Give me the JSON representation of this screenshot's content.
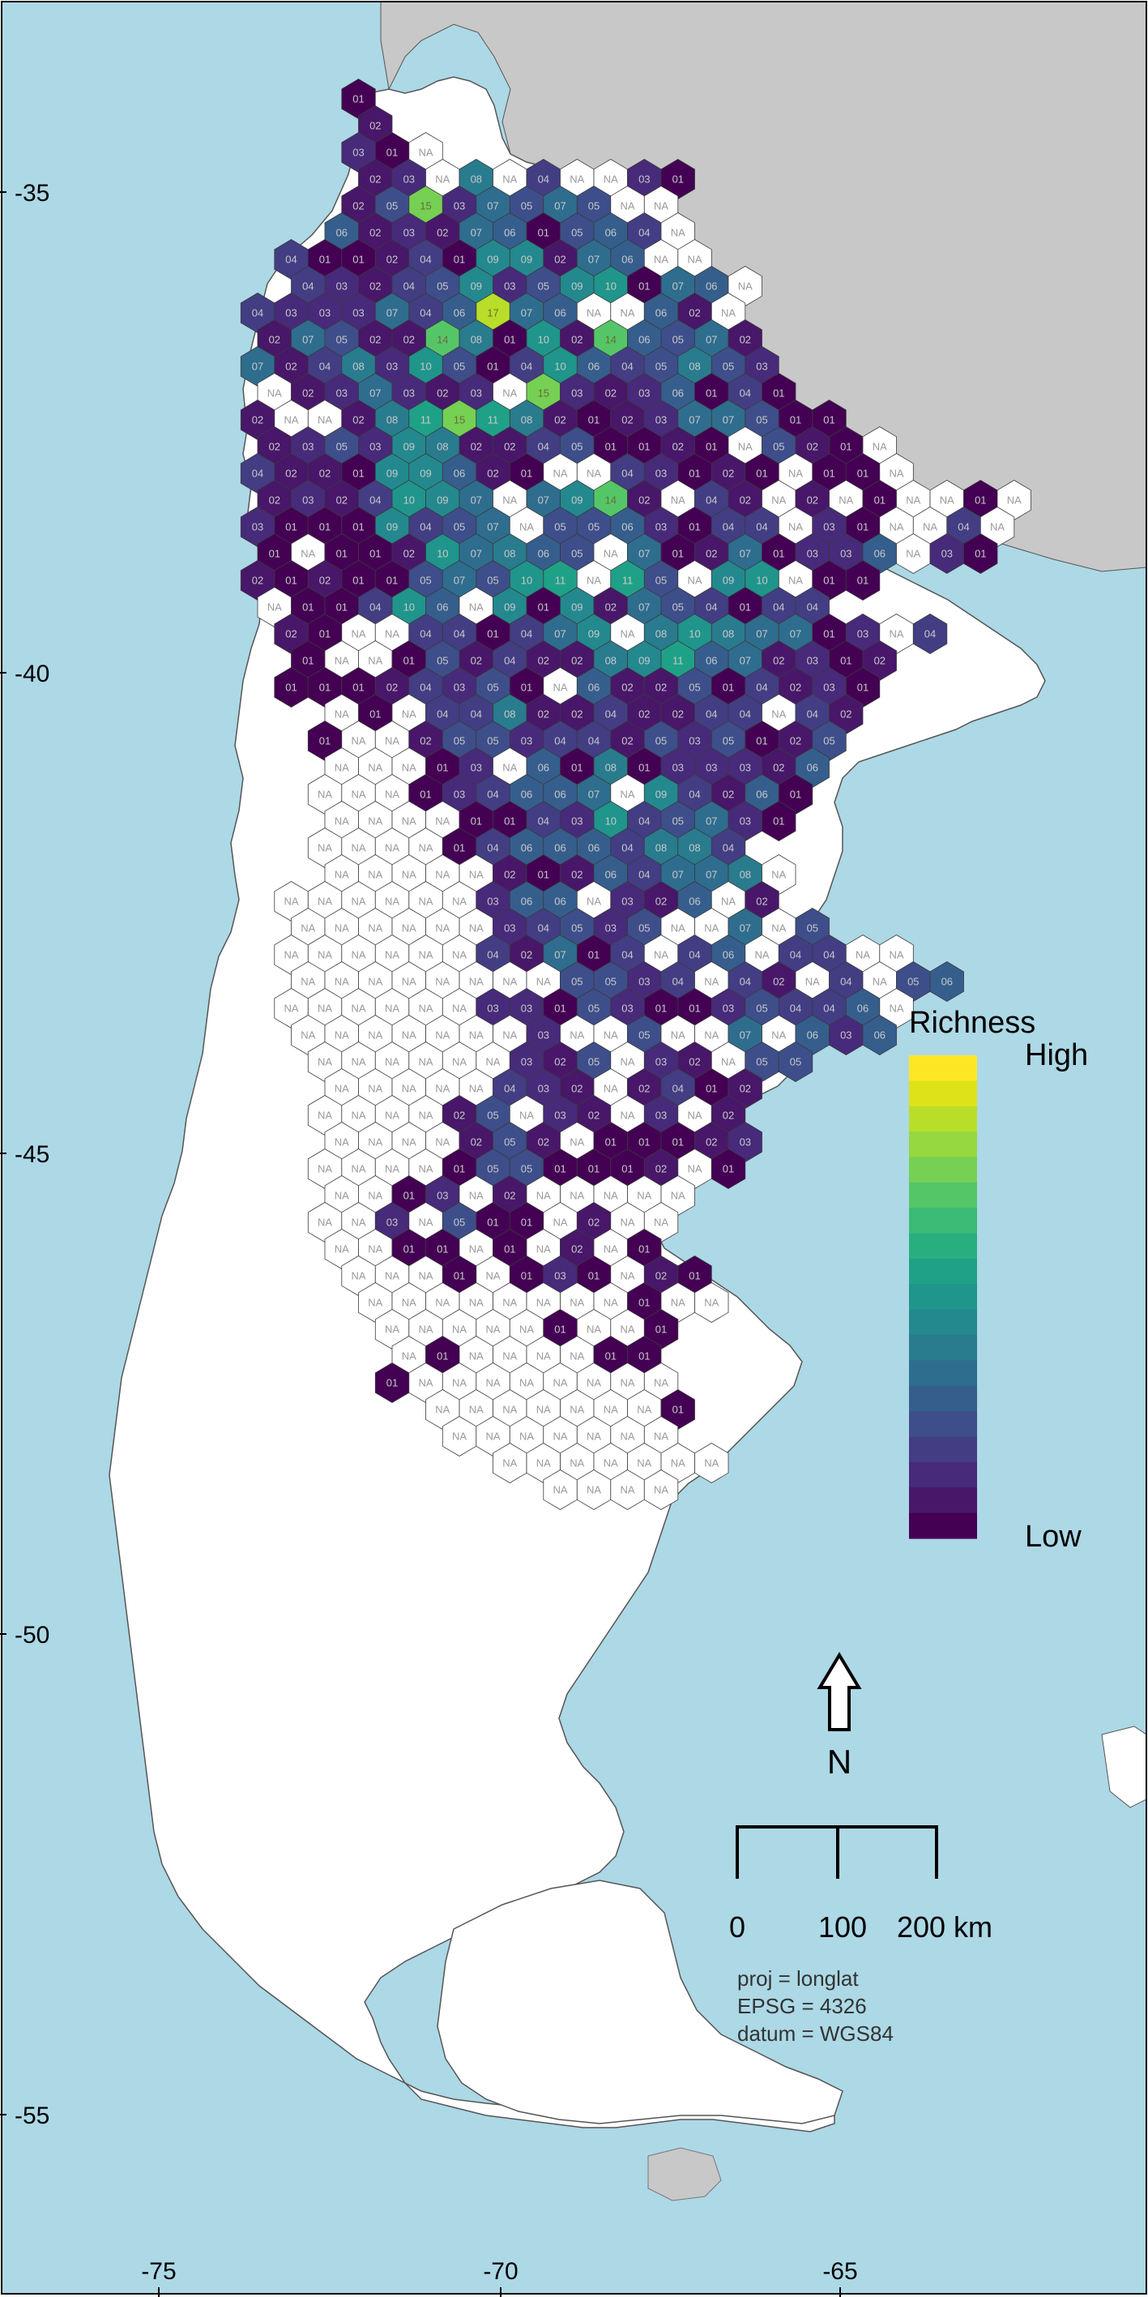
{
  "colors": {
    "ocean": "#add8e6",
    "land": "#ffffff",
    "neighbor": "#c8c8c8",
    "na_hex": "#ffffff",
    "na_text": "#9a9a9a",
    "hex_stroke": "#3a3a3a",
    "richness_ramp": [
      "#440154",
      "#481769",
      "#472a7a",
      "#433d84",
      "#3d4e8a",
      "#355e8d",
      "#2e6d8e",
      "#297b8e",
      "#23898e",
      "#1f958b",
      "#1fa187",
      "#29af7f",
      "#3bbb75",
      "#55c667",
      "#75d054",
      "#95d840",
      "#b8de29",
      "#dde318",
      "#fde725"
    ]
  },
  "axes": {
    "y_ticks": [
      "-35",
      "-40",
      "-45",
      "-50",
      "-55"
    ],
    "x_ticks": [
      "-75",
      "-70",
      "-65"
    ]
  },
  "legend": {
    "title": "Richness",
    "high": "High",
    "low": "Low"
  },
  "north_arrow": {
    "label": "N"
  },
  "scale_bar": {
    "labels": [
      "0",
      "100",
      "200 km"
    ]
  },
  "projection": {
    "line1": "proj = longlat",
    "line2": "EPSG = 4326",
    "line3": "datum = WGS84"
  },
  "hex_grid": {
    "na_label": "NA",
    "rows": [
      "3:01",
      "3:02",
      "3:03,01,NA",
      "3:02,03,NA,08,NA,04,NA,NA,03,01",
      "3:02,05,15,03,07,05,07,05,NA,NA",
      "2:06,02,03,02,07,06,01,05,06,04,NA",
      "1:04,01,01,02,04,01,09,09,02,07,06,NA,NA",
      "1:04,03,02,04,05,09,03,05,09,10,01,07,06,NA",
      "0:04,03,03,03,07,04,06,17,07,06,NA,NA,06,02,NA",
      "0:02,07,05,02,02,14,08,01,10,02,14,06,05,07,02",
      "0:07,02,04,08,03,10,05,01,04,10,06,04,05,08,05,03",
      "0:NA,02,03,07,03,02,03,NA,15,03,02,03,06,01,04,01",
      "0:02,NA,NA,02,08,11,15,11,08,02,01,02,03,07,07,05,01,01",
      "0:02,03,05,03,09,08,02,02,04,05,01,01,02,01,NA,05,02,01,NA",
      "0:04,02,02,01,09,09,06,02,01,NA,NA,04,03,01,02,01,NA,01,01,NA",
      "0:02,03,02,04,10,09,07,NA,07,09,14,02,NA,04,02,NA,02,NA,01,NA,NA,01,NA",
      "0:03,01,01,01,09,04,05,07,NA,05,05,06,03,01,04,04,NA,03,01,NA,NA,04,NA",
      "0:01,NA,01,01,02,10,07,08,06,05,NA,07,01,02,07,01,03,03,06,NA,03,01",
      "0:02,01,02,01,01,05,07,05,10,11,NA,11,05,NA,09,10,NA,01,01",
      "0:NA,01,01,04,10,06,NA,09,01,09,02,07,05,04,01,04,04",
      "1:02,01,NA,NA,04,04,01,04,07,09,NA,08,10,08,07,07,01,03,NA,04",
      "1:01,NA,NA,01,05,02,04,02,02,08,09,11,06,07,02,03,01,02",
      "1:01,01,01,02,04,03,05,01,NA,06,02,02,05,01,04,02,03,01",
      "2:NA,01,NA,04,04,08,02,02,04,02,02,04,04,NA,04,02",
      "2:01,NA,NA,02,05,05,03,04,04,02,05,03,05,01,02,05",
      "2:NA,NA,NA,01,03,NA,06,01,08,01,03,03,03,02,06",
      "2:NA,NA,NA,01,03,04,06,06,07,NA,09,04,02,06,01",
      "2:NA,NA,NA,NA,01,01,04,03,10,04,05,07,03,01",
      "2:NA,NA,NA,NA,01,04,06,06,06,04,08,08,04",
      "2:NA,NA,NA,NA,NA,02,01,02,06,04,07,07,08,NA",
      "1:NA,NA,NA,NA,NA,NA,03,06,06,NA,03,02,06,NA,02",
      "1:NA,NA,NA,NA,NA,NA,03,04,05,03,05,NA,NA,07,NA,05",
      "1:NA,NA,NA,NA,NA,NA,04,02,07,01,04,NA,04,06,NA,04,04,NA,NA",
      "1:NA,NA,NA,NA,NA,NA,NA,NA,05,05,03,04,NA,04,02,NA,04,NA,05,06",
      "1:NA,NA,NA,NA,NA,NA,03,03,01,05,03,01,01,03,05,04,04,06,NA",
      "1:NA,NA,NA,NA,NA,NA,NA,03,NA,NA,05,NA,NA,07,NA,06,03,06",
      "2:NA,NA,NA,NA,NA,NA,03,02,05,NA,03,02,NA,05,05",
      "2:NA,NA,NA,NA,NA,04,03,02,NA,02,04,01,02",
      "2:NA,NA,NA,NA,02,05,NA,03,02,NA,03,NA,02",
      "2:NA,NA,NA,NA,02,05,02,NA,01,01,01,02,03",
      "2:NA,NA,NA,NA,01,05,05,01,01,01,02,NA,01",
      "2:NA,NA,01,03,NA,02,NA,NA,NA,NA,NA",
      "2:NA,NA,03,NA,05,01,01,NA,02,NA,NA",
      "2:NA,NA,01,01,NA,01,NA,02,NA,01",
      "3:NA,NA,NA,01,NA,01,03,01,NA,02,01",
      "3:NA,NA,NA,NA,NA,NA,NA,NA,01,NA,NA",
      "4:NA,NA,NA,NA,NA,01,NA,NA,01",
      "4:NA,01,NA,NA,NA,NA,01,01",
      "4:01,NA,NA,NA,NA,NA,NA,NA,NA",
      "5:NA,NA,NA,NA,NA,NA,NA,01",
      "6:NA,NA,NA,NA,NA,NA,NA",
      "7:NA,NA,NA,NA,NA,NA,NA",
      "9:NA,NA,NA,NA"
    ]
  }
}
